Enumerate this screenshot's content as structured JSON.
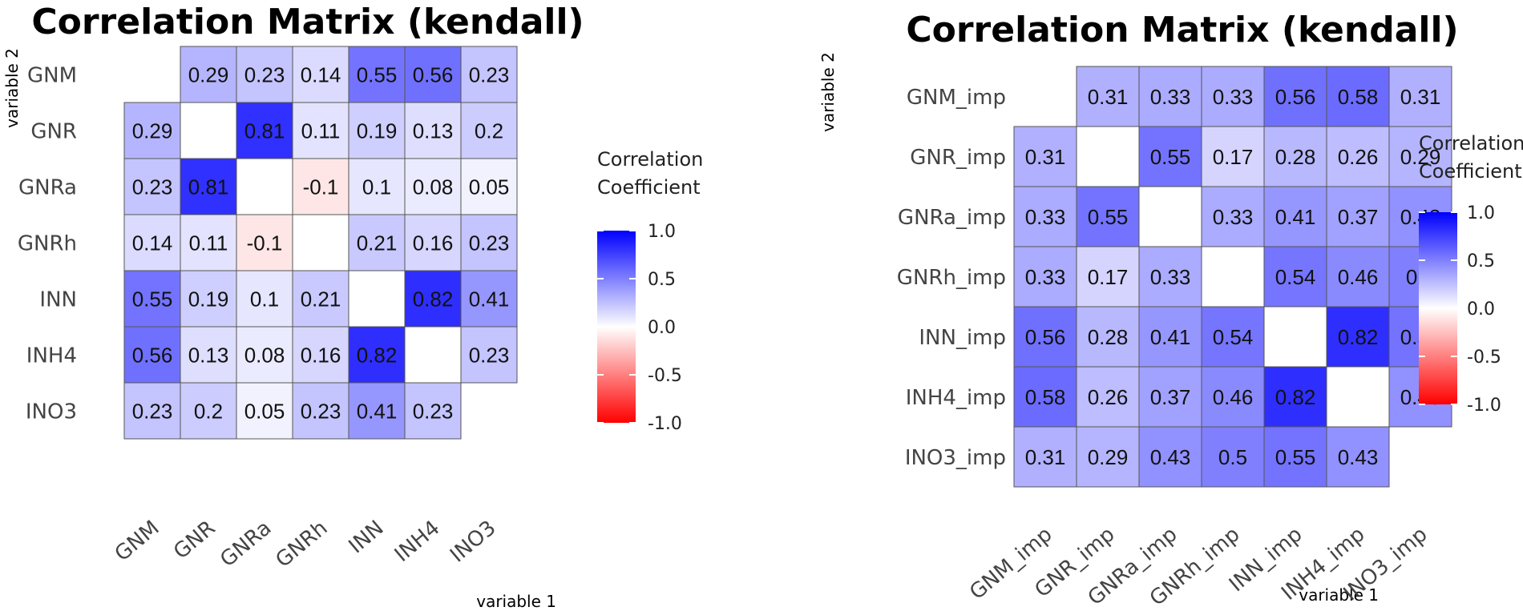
{
  "chart_data": [
    {
      "type": "heatmap",
      "title": "Correlation Matrix (kendall)",
      "xlabel": "variable 1",
      "ylabel": "variable 2",
      "categories": [
        "GNM",
        "GNR",
        "GNRa",
        "GNRh",
        "INN",
        "INH4",
        "INO3"
      ],
      "values": [
        [
          null,
          0.29,
          0.23,
          0.14,
          0.55,
          0.56,
          0.23
        ],
        [
          0.29,
          null,
          0.81,
          0.11,
          0.19,
          0.13,
          0.2
        ],
        [
          0.23,
          0.81,
          null,
          -0.1,
          0.1,
          0.08,
          0.05
        ],
        [
          0.14,
          0.11,
          -0.1,
          null,
          0.21,
          0.16,
          0.23
        ],
        [
          0.55,
          0.19,
          0.1,
          0.21,
          null,
          0.82,
          0.41
        ],
        [
          0.56,
          0.13,
          0.08,
          0.16,
          0.82,
          null,
          0.23
        ],
        [
          0.23,
          0.2,
          0.05,
          0.23,
          0.41,
          0.23,
          null
        ]
      ],
      "legend": {
        "title_lines": [
          "Correlation",
          "Coefficient"
        ],
        "ticks": [
          1.0,
          0.5,
          0.0,
          -0.5,
          -1.0
        ],
        "tick_labels": [
          "1.0",
          "0.5",
          "0.0",
          "-0.5",
          "-1.0"
        ],
        "range": [
          -1,
          1
        ],
        "colors": {
          "high": "#0000ff",
          "mid": "#ffffff",
          "low": "#ff0000"
        }
      }
    },
    {
      "type": "heatmap",
      "title": "Correlation Matrix (kendall)",
      "xlabel": "variable 1",
      "ylabel": "variable 2",
      "categories": [
        "GNM_imp",
        "GNR_imp",
        "GNRa_imp",
        "GNRh_imp",
        "INN_imp",
        "INH4_imp",
        "INO3_imp"
      ],
      "values": [
        [
          null,
          0.31,
          0.33,
          0.33,
          0.56,
          0.58,
          0.31
        ],
        [
          0.31,
          null,
          0.55,
          0.17,
          0.28,
          0.26,
          0.29
        ],
        [
          0.33,
          0.55,
          null,
          0.33,
          0.41,
          0.37,
          0.43
        ],
        [
          0.33,
          0.17,
          0.33,
          null,
          0.54,
          0.46,
          0.5
        ],
        [
          0.56,
          0.28,
          0.41,
          0.54,
          null,
          0.82,
          0.55
        ],
        [
          0.58,
          0.26,
          0.37,
          0.46,
          0.82,
          null,
          0.43
        ],
        [
          0.31,
          0.29,
          0.43,
          0.5,
          0.55,
          0.43,
          null
        ]
      ],
      "legend": {
        "title_lines": [
          "Correlation",
          "Coefficient"
        ],
        "ticks": [
          1.0,
          0.5,
          0.0,
          -0.5,
          -1.0
        ],
        "tick_labels": [
          "1.0",
          "0.5",
          "0.0",
          "-0.5",
          "-1.0"
        ],
        "range": [
          -1,
          1
        ],
        "colors": {
          "high": "#0000ff",
          "mid": "#ffffff",
          "low": "#ff0000"
        }
      }
    }
  ]
}
